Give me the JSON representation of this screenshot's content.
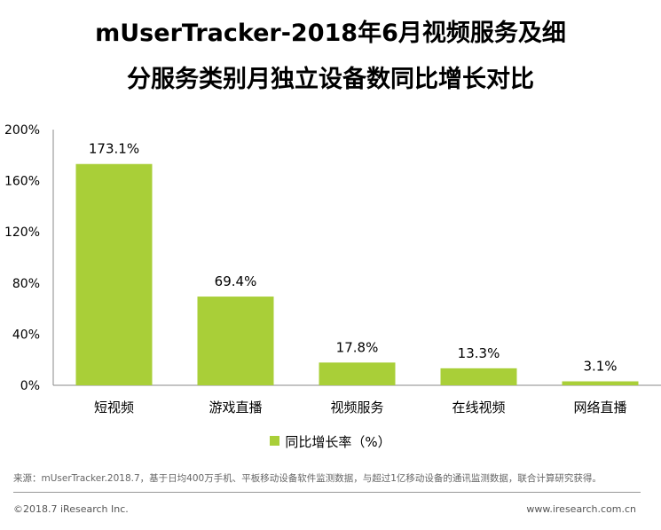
{
  "title_line1": "mUserTracker-2018年6月视频服务及细",
  "title_line2": "分服务类别月独立设备数同比增长对比",
  "chart_data": {
    "type": "bar",
    "categories": [
      "短视频",
      "游戏直播",
      "视频服务",
      "在线视频",
      "网络直播"
    ],
    "series": [
      {
        "name": "同比增长率（%）",
        "values": [
          173.1,
          69.4,
          17.8,
          13.3,
          3.1
        ],
        "labels": [
          "173.1%",
          "69.4%",
          "17.8%",
          "13.3%",
          "3.1%"
        ],
        "color": "#a9cf38"
      }
    ],
    "ylim": [
      0,
      200
    ],
    "yticks": [
      0,
      40,
      80,
      120,
      160,
      200
    ],
    "ytick_labels": [
      "0%",
      "40%",
      "80%",
      "120%",
      "160%",
      "200%"
    ],
    "legend_position": "bottom",
    "grid": false
  },
  "source": "来源：mUserTracker.2018.7，基于日均400万手机、平板移动设备软件监测数据，与超过1亿移动设备的通讯监测数据，联合计算研究获得。",
  "footer_left": "©2018.7 iResearch Inc.",
  "footer_right": "www.iresearch.com.cn"
}
